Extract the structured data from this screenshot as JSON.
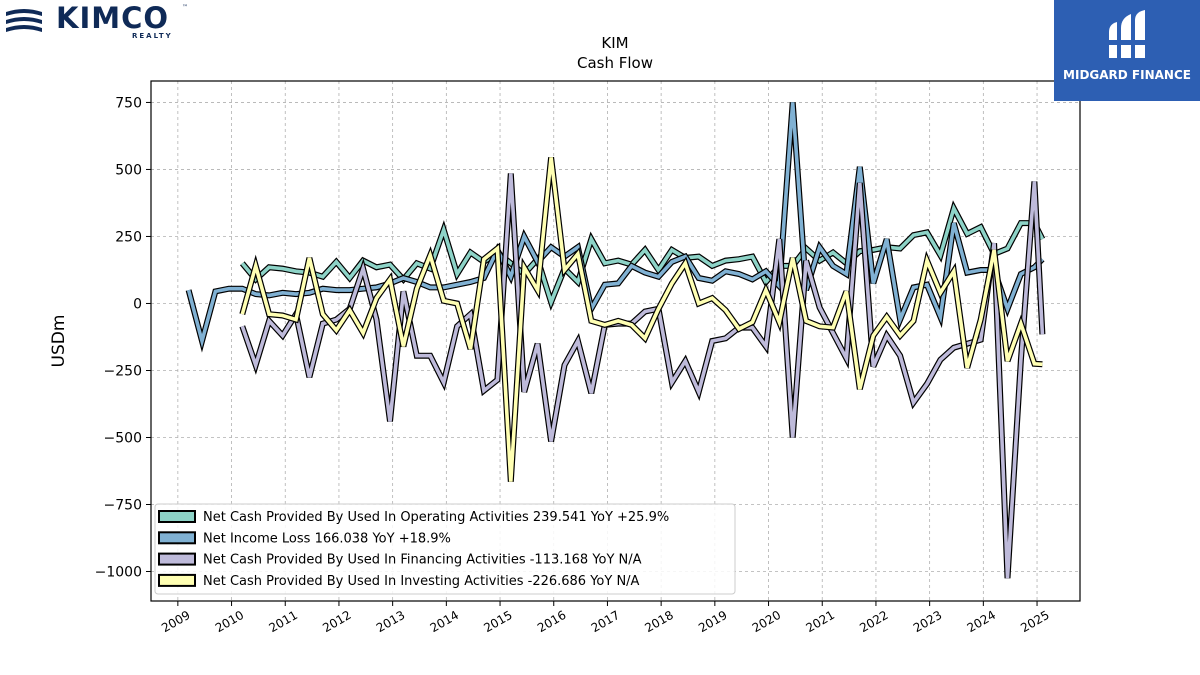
{
  "header": {
    "brand_left": "KIMCO",
    "brand_left_sub": "REALTY",
    "brand_left_tm": "™",
    "brand_right": "MIDGARD FINANCE"
  },
  "chart_data": {
    "type": "line",
    "title": "KIM",
    "subtitle": "Cash Flow",
    "ylabel": "USDm",
    "xlabel": "",
    "xlim": [
      2008.5,
      2025.8
    ],
    "ylim": [
      -1110,
      830
    ],
    "yticks": [
      750,
      500,
      250,
      0,
      -250,
      -500,
      -750,
      -1000
    ],
    "ytick_labels": [
      "750",
      "500",
      "250",
      "0",
      "−250",
      "−500",
      "−750",
      "−1000"
    ],
    "xticks": [
      "2009",
      "2010",
      "2011",
      "2012",
      "2013",
      "2014",
      "2015",
      "2016",
      "2017",
      "2018",
      "2019",
      "2020",
      "2021",
      "2022",
      "2023",
      "2024",
      "2025"
    ],
    "grid": true,
    "legend_position": "lower-left",
    "series": [
      {
        "name": "Net Cash Provided By Used In Operating Activities",
        "legend_label": "Net Cash Provided By Used In Operating Activities  239.541 YoY +25.9%",
        "color": "#8dd3c7",
        "points": [
          [
            2010.2,
            150
          ],
          [
            2010.45,
            90
          ],
          [
            2010.7,
            135
          ],
          [
            2010.95,
            130
          ],
          [
            2011.2,
            120
          ],
          [
            2011.45,
            115
          ],
          [
            2011.7,
            100
          ],
          [
            2011.95,
            155
          ],
          [
            2012.2,
            95
          ],
          [
            2012.45,
            160
          ],
          [
            2012.7,
            135
          ],
          [
            2012.95,
            145
          ],
          [
            2013.2,
            90
          ],
          [
            2013.45,
            150
          ],
          [
            2013.7,
            130
          ],
          [
            2013.95,
            275
          ],
          [
            2014.2,
            110
          ],
          [
            2014.45,
            190
          ],
          [
            2014.7,
            155
          ],
          [
            2014.95,
            190
          ],
          [
            2015.2,
            150
          ],
          [
            2015.45,
            110
          ],
          [
            2015.7,
            165
          ],
          [
            2015.95,
            5
          ],
          [
            2016.2,
            130
          ],
          [
            2016.45,
            80
          ],
          [
            2016.7,
            240
          ],
          [
            2016.95,
            150
          ],
          [
            2017.2,
            160
          ],
          [
            2017.45,
            145
          ],
          [
            2017.7,
            200
          ],
          [
            2017.95,
            125
          ],
          [
            2018.2,
            200
          ],
          [
            2018.45,
            170
          ],
          [
            2018.7,
            175
          ],
          [
            2018.95,
            140
          ],
          [
            2019.2,
            160
          ],
          [
            2019.45,
            165
          ],
          [
            2019.7,
            175
          ],
          [
            2019.95,
            80
          ],
          [
            2020.2,
            140
          ],
          [
            2020.45,
            140
          ],
          [
            2020.7,
            205
          ],
          [
            2020.95,
            160
          ],
          [
            2021.2,
            190
          ],
          [
            2021.45,
            150
          ],
          [
            2021.7,
            195
          ],
          [
            2021.95,
            200
          ],
          [
            2022.2,
            210
          ],
          [
            2022.45,
            205
          ],
          [
            2022.7,
            255
          ],
          [
            2022.95,
            265
          ],
          [
            2023.2,
            180
          ],
          [
            2023.45,
            355
          ],
          [
            2023.7,
            260
          ],
          [
            2023.95,
            285
          ],
          [
            2024.2,
            185
          ],
          [
            2024.45,
            205
          ],
          [
            2024.7,
            300
          ],
          [
            2024.95,
            300
          ],
          [
            2025.1,
            240
          ]
        ]
      },
      {
        "name": "Net Income Loss",
        "legend_label": "Net Income Loss  166.038 YoY +18.9%",
        "color": "#80b1d3",
        "points": [
          [
            2009.2,
            50
          ],
          [
            2009.45,
            -140
          ],
          [
            2009.7,
            45
          ],
          [
            2009.95,
            55
          ],
          [
            2010.2,
            55
          ],
          [
            2010.45,
            35
          ],
          [
            2010.7,
            30
          ],
          [
            2010.95,
            40
          ],
          [
            2011.2,
            35
          ],
          [
            2011.45,
            40
          ],
          [
            2011.7,
            55
          ],
          [
            2011.95,
            50
          ],
          [
            2012.2,
            50
          ],
          [
            2012.45,
            55
          ],
          [
            2012.7,
            60
          ],
          [
            2012.95,
            75
          ],
          [
            2013.2,
            95
          ],
          [
            2013.45,
            80
          ],
          [
            2013.7,
            60
          ],
          [
            2013.95,
            60
          ],
          [
            2014.2,
            70
          ],
          [
            2014.45,
            80
          ],
          [
            2014.7,
            95
          ],
          [
            2014.95,
            200
          ],
          [
            2015.2,
            100
          ],
          [
            2015.45,
            250
          ],
          [
            2015.7,
            155
          ],
          [
            2015.95,
            210
          ],
          [
            2016.2,
            175
          ],
          [
            2016.45,
            210
          ],
          [
            2016.7,
            -20
          ],
          [
            2016.95,
            70
          ],
          [
            2017.2,
            75
          ],
          [
            2017.45,
            140
          ],
          [
            2017.7,
            115
          ],
          [
            2017.95,
            100
          ],
          [
            2018.2,
            155
          ],
          [
            2018.45,
            175
          ],
          [
            2018.7,
            95
          ],
          [
            2018.95,
            85
          ],
          [
            2019.2,
            120
          ],
          [
            2019.45,
            110
          ],
          [
            2019.7,
            90
          ],
          [
            2019.95,
            120
          ],
          [
            2020.2,
            65
          ],
          [
            2020.45,
            750
          ],
          [
            2020.7,
            50
          ],
          [
            2020.95,
            210
          ],
          [
            2021.2,
            140
          ],
          [
            2021.45,
            110
          ],
          [
            2021.7,
            510
          ],
          [
            2021.95,
            75
          ],
          [
            2022.2,
            240
          ],
          [
            2022.45,
            -60
          ],
          [
            2022.7,
            60
          ],
          [
            2022.95,
            70
          ],
          [
            2023.2,
            -50
          ],
          [
            2023.45,
            300
          ],
          [
            2023.7,
            115
          ],
          [
            2023.95,
            125
          ],
          [
            2024.2,
            125
          ],
          [
            2024.45,
            -20
          ],
          [
            2024.7,
            110
          ],
          [
            2024.95,
            135
          ],
          [
            2025.1,
            165
          ]
        ]
      },
      {
        "name": "Net Cash Provided By Used In Financing Activities",
        "legend_label": "Net Cash Provided By Used In Financing Activities  -113.168 YoY N/A",
        "color": "#bebada",
        "points": [
          [
            2010.2,
            -85
          ],
          [
            2010.45,
            -230
          ],
          [
            2010.7,
            -65
          ],
          [
            2010.95,
            -120
          ],
          [
            2011.2,
            -40
          ],
          [
            2011.45,
            -275
          ],
          [
            2011.7,
            -75
          ],
          [
            2011.95,
            -60
          ],
          [
            2012.2,
            -20
          ],
          [
            2012.45,
            130
          ],
          [
            2012.7,
            -60
          ],
          [
            2012.95,
            -440
          ],
          [
            2013.2,
            45
          ],
          [
            2013.45,
            -195
          ],
          [
            2013.7,
            -195
          ],
          [
            2013.95,
            -295
          ],
          [
            2014.2,
            -85
          ],
          [
            2014.45,
            -40
          ],
          [
            2014.7,
            -325
          ],
          [
            2014.95,
            -285
          ],
          [
            2015.2,
            485
          ],
          [
            2015.45,
            -330
          ],
          [
            2015.7,
            -150
          ],
          [
            2015.95,
            -515
          ],
          [
            2016.2,
            -230
          ],
          [
            2016.45,
            -140
          ],
          [
            2016.7,
            -335
          ],
          [
            2016.95,
            -80
          ],
          [
            2017.2,
            -75
          ],
          [
            2017.45,
            -75
          ],
          [
            2017.7,
            -30
          ],
          [
            2017.95,
            -20
          ],
          [
            2018.2,
            -295
          ],
          [
            2018.45,
            -215
          ],
          [
            2018.7,
            -330
          ],
          [
            2018.95,
            -140
          ],
          [
            2019.2,
            -130
          ],
          [
            2019.45,
            -90
          ],
          [
            2019.7,
            -90
          ],
          [
            2019.95,
            -160
          ],
          [
            2020.2,
            240
          ],
          [
            2020.45,
            -500
          ],
          [
            2020.7,
            160
          ],
          [
            2020.95,
            -15
          ],
          [
            2021.2,
            -110
          ],
          [
            2021.45,
            -205
          ],
          [
            2021.7,
            450
          ],
          [
            2021.95,
            -235
          ],
          [
            2022.2,
            -120
          ],
          [
            2022.45,
            -195
          ],
          [
            2022.7,
            -370
          ],
          [
            2022.95,
            -300
          ],
          [
            2023.2,
            -210
          ],
          [
            2023.45,
            -165
          ],
          [
            2023.7,
            -150
          ],
          [
            2023.95,
            -135
          ],
          [
            2024.2,
            225
          ],
          [
            2024.45,
            -1025
          ],
          [
            2024.7,
            -210
          ],
          [
            2024.95,
            455
          ],
          [
            2025.1,
            -115
          ]
        ]
      },
      {
        "name": "Net Cash Provided By Used In Investing Activities",
        "legend_label": "Net Cash Provided By Used In Investing Activities  -226.686 YoY N/A",
        "color": "#ffffb3",
        "points": [
          [
            2010.2,
            -40
          ],
          [
            2010.45,
            140
          ],
          [
            2010.7,
            -40
          ],
          [
            2010.95,
            -45
          ],
          [
            2011.2,
            -60
          ],
          [
            2011.45,
            170
          ],
          [
            2011.7,
            -40
          ],
          [
            2011.95,
            -100
          ],
          [
            2012.2,
            -25
          ],
          [
            2012.45,
            -110
          ],
          [
            2012.7,
            20
          ],
          [
            2012.95,
            90
          ],
          [
            2013.2,
            -160
          ],
          [
            2013.45,
            55
          ],
          [
            2013.7,
            180
          ],
          [
            2013.95,
            10
          ],
          [
            2014.2,
            0
          ],
          [
            2014.45,
            -170
          ],
          [
            2014.7,
            165
          ],
          [
            2014.95,
            205
          ],
          [
            2015.2,
            -665
          ],
          [
            2015.45,
            135
          ],
          [
            2015.7,
            50
          ],
          [
            2015.95,
            545
          ],
          [
            2016.2,
            125
          ],
          [
            2016.45,
            185
          ],
          [
            2016.7,
            -65
          ],
          [
            2016.95,
            -80
          ],
          [
            2017.2,
            -65
          ],
          [
            2017.45,
            -80
          ],
          [
            2017.7,
            -130
          ],
          [
            2017.95,
            -20
          ],
          [
            2018.2,
            75
          ],
          [
            2018.45,
            150
          ],
          [
            2018.7,
            0
          ],
          [
            2018.95,
            20
          ],
          [
            2019.2,
            -25
          ],
          [
            2019.45,
            -95
          ],
          [
            2019.7,
            -70
          ],
          [
            2019.95,
            50
          ],
          [
            2020.2,
            -70
          ],
          [
            2020.45,
            170
          ],
          [
            2020.7,
            -65
          ],
          [
            2020.95,
            -85
          ],
          [
            2021.2,
            -90
          ],
          [
            2021.45,
            45
          ],
          [
            2021.7,
            -320
          ],
          [
            2021.95,
            -120
          ],
          [
            2022.2,
            -50
          ],
          [
            2022.45,
            -120
          ],
          [
            2022.7,
            -65
          ],
          [
            2022.95,
            160
          ],
          [
            2023.2,
            40
          ],
          [
            2023.45,
            120
          ],
          [
            2023.7,
            -240
          ],
          [
            2023.95,
            -60
          ],
          [
            2024.2,
            200
          ],
          [
            2024.45,
            -215
          ],
          [
            2024.7,
            -75
          ],
          [
            2024.95,
            -225
          ],
          [
            2025.1,
            -227
          ]
        ]
      }
    ]
  }
}
